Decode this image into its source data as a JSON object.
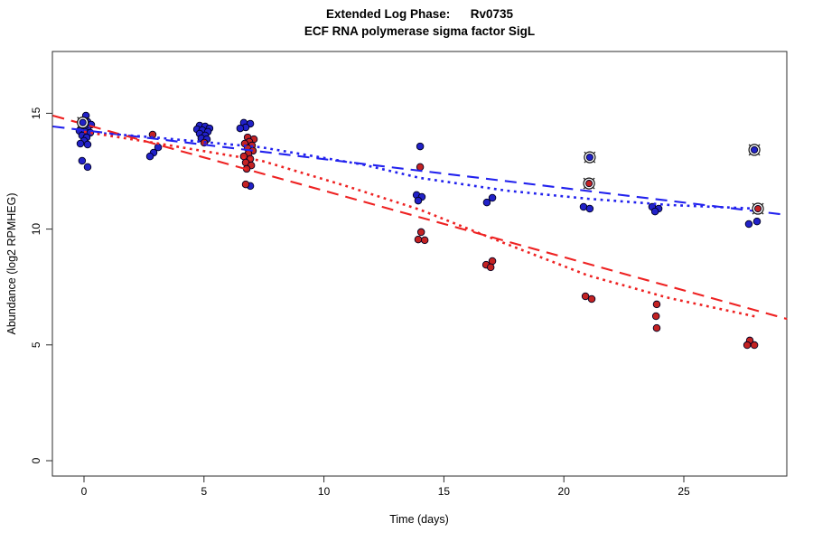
{
  "title": {
    "line1": "Extended Log Phase:      Rv0735",
    "line2": "ECF RNA polymerase sigma factor SigL"
  },
  "axes": {
    "x": {
      "label": "Time  (days)",
      "ticks": [
        0,
        5,
        10,
        15,
        20,
        25
      ]
    },
    "y": {
      "label": "Abundance  (log2 RPMHEG)",
      "ticks": [
        0,
        5,
        10,
        15
      ]
    }
  },
  "colors": {
    "blue_point": "#2121c8",
    "red_point": "#c42222",
    "blue_line": "#2222ee",
    "red_line": "#ee2222",
    "marker_ring": "#111111",
    "axis": "#2b2b2b"
  },
  "chart_data": {
    "type": "scatter",
    "title": "Extended Log Phase: Rv0735 — ECF RNA polymerase sigma factor SigL",
    "xlabel": "Time (days)",
    "ylabel": "Abundance (log2 RPMHEG)",
    "xlim": [
      -1.3,
      29.3
    ],
    "ylim": [
      -0.66,
      17.7
    ],
    "grid": false,
    "legend": "none",
    "series": [
      {
        "name": "condition-blue",
        "marker": "dot",
        "points": [
          [
            0.08,
            14.9
          ],
          [
            -0.11,
            14.66
          ],
          [
            0.15,
            14.63
          ],
          [
            0.3,
            14.51
          ],
          [
            -0.04,
            14.43
          ],
          [
            0.15,
            14.35
          ],
          [
            -0.19,
            14.24
          ],
          [
            0.04,
            14.2
          ],
          [
            0.26,
            14.16
          ],
          [
            -0.08,
            14.04
          ],
          [
            0.11,
            13.96
          ],
          [
            0.0,
            13.81
          ],
          [
            -0.15,
            13.69
          ],
          [
            0.15,
            13.65
          ],
          [
            -0.08,
            12.95
          ],
          [
            0.15,
            12.68
          ],
          [
            3.09,
            13.53
          ],
          [
            2.9,
            13.3
          ],
          [
            2.75,
            13.14
          ],
          [
            4.82,
            14.47
          ],
          [
            5.05,
            14.43
          ],
          [
            5.23,
            14.35
          ],
          [
            4.71,
            14.31
          ],
          [
            4.93,
            14.27
          ],
          [
            5.16,
            14.2
          ],
          [
            4.82,
            14.12
          ],
          [
            5.05,
            14.04
          ],
          [
            4.89,
            13.92
          ],
          [
            5.12,
            13.88
          ],
          [
            6.66,
            14.59
          ],
          [
            6.93,
            14.55
          ],
          [
            6.74,
            14.39
          ],
          [
            6.51,
            14.35
          ],
          [
            6.93,
            11.86
          ],
          [
            14.01,
            13.57
          ],
          [
            13.86,
            11.47
          ],
          [
            14.08,
            11.39
          ],
          [
            13.93,
            11.23
          ],
          [
            17.02,
            11.35
          ],
          [
            16.79,
            11.15
          ],
          [
            20.82,
            10.96
          ],
          [
            21.08,
            10.88
          ],
          [
            23.68,
            10.96
          ],
          [
            23.95,
            10.88
          ],
          [
            23.8,
            10.76
          ],
          [
            28.05,
            10.33
          ],
          [
            27.71,
            10.22
          ]
        ]
      },
      {
        "name": "condition-red",
        "marker": "dot",
        "points": [
          [
            2.86,
            14.08
          ],
          [
            5.01,
            13.73
          ],
          [
            6.82,
            13.96
          ],
          [
            7.08,
            13.88
          ],
          [
            6.89,
            13.77
          ],
          [
            6.7,
            13.69
          ],
          [
            7.0,
            13.61
          ],
          [
            6.82,
            13.49
          ],
          [
            7.04,
            13.38
          ],
          [
            6.85,
            13.26
          ],
          [
            6.66,
            13.14
          ],
          [
            6.93,
            13.03
          ],
          [
            6.74,
            12.87
          ],
          [
            6.97,
            12.75
          ],
          [
            6.78,
            12.6
          ],
          [
            6.74,
            11.93
          ],
          [
            14.01,
            12.68
          ],
          [
            14.05,
            9.87
          ],
          [
            13.93,
            9.55
          ],
          [
            14.2,
            9.52
          ],
          [
            17.02,
            8.62
          ],
          [
            16.76,
            8.46
          ],
          [
            16.95,
            8.35
          ],
          [
            20.9,
            7.1
          ],
          [
            21.16,
            6.98
          ],
          [
            23.87,
            6.75
          ],
          [
            23.84,
            6.24
          ],
          [
            23.87,
            5.73
          ],
          [
            27.75,
            5.19
          ],
          [
            27.64,
            4.99
          ],
          [
            27.94,
            4.99
          ]
        ]
      },
      {
        "name": "flagged-blue",
        "marker": "circle-x",
        "points": [
          [
            -0.05,
            14.6
          ],
          [
            21.08,
            13.1
          ],
          [
            27.94,
            13.42
          ]
        ]
      },
      {
        "name": "flagged-red",
        "marker": "circle-x",
        "points": [
          [
            21.05,
            11.97
          ],
          [
            28.09,
            10.88
          ]
        ]
      }
    ],
    "lines": [
      {
        "name": "blue-linear-fit",
        "style": "longdash",
        "series": "blue",
        "points": [
          [
            -1.3,
            14.43
          ],
          [
            29.3,
            10.61
          ]
        ]
      },
      {
        "name": "red-linear-fit",
        "style": "longdash",
        "series": "red",
        "points": [
          [
            -1.3,
            14.9
          ],
          [
            29.3,
            6.12
          ]
        ]
      },
      {
        "name": "blue-smooth-fit",
        "style": "dotted",
        "series": "blue",
        "points": [
          [
            0,
            14.2
          ],
          [
            2.9,
            13.96
          ],
          [
            7.4,
            13.53
          ],
          [
            11.6,
            12.79
          ],
          [
            14,
            12.21
          ],
          [
            17.6,
            11.66
          ],
          [
            21,
            11.31
          ],
          [
            24.4,
            11.04
          ],
          [
            28.1,
            10.88
          ]
        ]
      },
      {
        "name": "red-smooth-fit",
        "style": "dotted",
        "series": "red",
        "points": [
          [
            0,
            14.2
          ],
          [
            2.9,
            13.73
          ],
          [
            7.4,
            12.95
          ],
          [
            10.8,
            11.9
          ],
          [
            14,
            10.84
          ],
          [
            17.6,
            9.36
          ],
          [
            21,
            8.0
          ],
          [
            24.4,
            7.02
          ],
          [
            28.1,
            6.2
          ]
        ]
      }
    ]
  }
}
